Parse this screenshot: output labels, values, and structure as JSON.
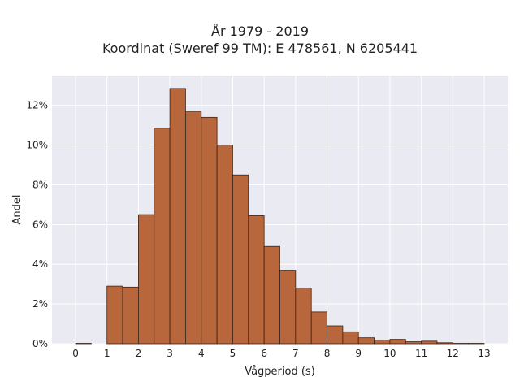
{
  "chart_data": {
    "type": "bar",
    "title": "År 1979 - 2019",
    "subtitle": "Koordinat (Sweref 99 TM): E 478561, N 6205441",
    "xlabel": "Vågperiod (s)",
    "ylabel": "Andel",
    "xlim": [
      -0.75,
      13.75
    ],
    "ylim": [
      0,
      13.5
    ],
    "xticks": [
      0,
      1,
      2,
      3,
      4,
      5,
      6,
      7,
      8,
      9,
      10,
      11,
      12,
      13
    ],
    "yticks": [
      0,
      2,
      4,
      6,
      8,
      10,
      12
    ],
    "ytick_suffix": "%",
    "grid": true,
    "bin_width": 0.5,
    "bins": [
      {
        "start": 0.0,
        "value": 0.02
      },
      {
        "start": 0.5,
        "value": 0.0
      },
      {
        "start": 1.0,
        "value": 2.9
      },
      {
        "start": 1.5,
        "value": 2.85
      },
      {
        "start": 2.0,
        "value": 6.5
      },
      {
        "start": 2.5,
        "value": 10.85
      },
      {
        "start": 3.0,
        "value": 12.85
      },
      {
        "start": 3.5,
        "value": 11.7
      },
      {
        "start": 4.0,
        "value": 11.4
      },
      {
        "start": 4.5,
        "value": 10.0
      },
      {
        "start": 5.0,
        "value": 8.5
      },
      {
        "start": 5.5,
        "value": 6.45
      },
      {
        "start": 6.0,
        "value": 4.9
      },
      {
        "start": 6.5,
        "value": 3.7
      },
      {
        "start": 7.0,
        "value": 2.8
      },
      {
        "start": 7.5,
        "value": 1.6
      },
      {
        "start": 8.0,
        "value": 0.9
      },
      {
        "start": 8.5,
        "value": 0.6
      },
      {
        "start": 9.0,
        "value": 0.3
      },
      {
        "start": 9.5,
        "value": 0.18
      },
      {
        "start": 10.0,
        "value": 0.22
      },
      {
        "start": 10.5,
        "value": 0.1
      },
      {
        "start": 11.0,
        "value": 0.13
      },
      {
        "start": 11.5,
        "value": 0.05
      },
      {
        "start": 12.0,
        "value": 0.02
      },
      {
        "start": 12.5,
        "value": 0.02
      }
    ],
    "colors": {
      "bar_fill": "#b8663c",
      "bar_edge": "#3a2318",
      "plot_background": "#eaeaf2",
      "grid": "#ffffff",
      "text": "#222222"
    }
  }
}
